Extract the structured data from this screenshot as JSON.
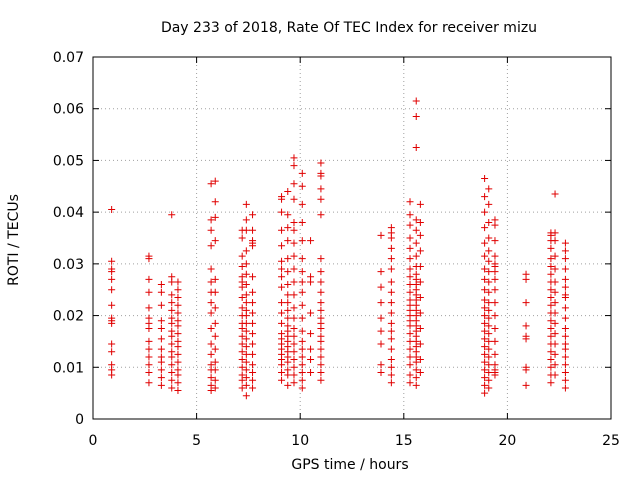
{
  "chart_data": {
    "type": "scatter",
    "title": "Day 233 of 2018, Rate Of TEC Index for receiver mizu",
    "xlabel": "GPS time / hours",
    "ylabel": "ROTI / TECUs",
    "xlim": [
      0,
      25
    ],
    "ylim": [
      0,
      0.07
    ],
    "xticks": [
      0,
      5,
      10,
      15,
      20,
      25
    ],
    "yticks": [
      0,
      0.01,
      0.02,
      0.03,
      0.04,
      0.05,
      0.06,
      0.07
    ],
    "xtick_labels": [
      "0",
      "5",
      "10",
      "15",
      "20",
      "25"
    ],
    "ytick_labels": [
      "0",
      "0.01",
      "0.02",
      "0.03",
      "0.04",
      "0.05",
      "0.06",
      "0.07"
    ],
    "grid": true,
    "marker": "plus",
    "color": "#e00000",
    "clusters": [
      {
        "x": 0.9,
        "y": [
          0.0085,
          0.0095,
          0.0105,
          0.013,
          0.0145,
          0.0185,
          0.019,
          0.0195,
          0.022,
          0.025,
          0.027,
          0.0285,
          0.029,
          0.0305,
          0.0405
        ]
      },
      {
        "x": 2.7,
        "y": [
          0.007,
          0.009,
          0.0105,
          0.012,
          0.0135,
          0.015,
          0.0175,
          0.0185,
          0.0195,
          0.0215,
          0.0245,
          0.027,
          0.031,
          0.0315
        ]
      },
      {
        "x": 3.3,
        "y": [
          0.0065,
          0.008,
          0.0095,
          0.011,
          0.012,
          0.0135,
          0.0155,
          0.0175,
          0.019,
          0.022,
          0.0245,
          0.026
        ]
      },
      {
        "x": 3.8,
        "y": [
          0.006,
          0.0075,
          0.009,
          0.0105,
          0.012,
          0.013,
          0.0145,
          0.016,
          0.017,
          0.0185,
          0.0195,
          0.021,
          0.0225,
          0.024,
          0.0265,
          0.0275,
          0.0395
        ]
      },
      {
        "x": 4.1,
        "y": [
          0.0055,
          0.007,
          0.0085,
          0.0095,
          0.011,
          0.0125,
          0.014,
          0.015,
          0.0165,
          0.018,
          0.019,
          0.0205,
          0.022,
          0.0235,
          0.025,
          0.0265
        ]
      },
      {
        "x": 5.7,
        "y": [
          0.0055,
          0.0065,
          0.008,
          0.0095,
          0.0105,
          0.0125,
          0.0145,
          0.0175,
          0.0205,
          0.0225,
          0.0245,
          0.0265,
          0.029,
          0.0335,
          0.0365,
          0.0385,
          0.0455
        ]
      },
      {
        "x": 5.9,
        "y": [
          0.006,
          0.0075,
          0.0095,
          0.011,
          0.0135,
          0.016,
          0.0185,
          0.0215,
          0.0245,
          0.027,
          0.0345,
          0.039,
          0.042,
          0.046
        ]
      },
      {
        "x": 7.2,
        "y": [
          0.006,
          0.0075,
          0.0085,
          0.01,
          0.0115,
          0.013,
          0.0145,
          0.016,
          0.0175,
          0.0185,
          0.02,
          0.0215,
          0.0235,
          0.0255,
          0.0265,
          0.0275,
          0.0295,
          0.0315,
          0.035,
          0.0365
        ]
      },
      {
        "x": 7.4,
        "y": [
          0.0045,
          0.0065,
          0.008,
          0.0095,
          0.011,
          0.0125,
          0.014,
          0.0155,
          0.017,
          0.0185,
          0.02,
          0.021,
          0.0225,
          0.024,
          0.026,
          0.028,
          0.03,
          0.0325,
          0.0365,
          0.0385,
          0.0415
        ]
      },
      {
        "x": 7.7,
        "y": [
          0.006,
          0.0075,
          0.009,
          0.0105,
          0.0125,
          0.0145,
          0.0165,
          0.0185,
          0.0205,
          0.0225,
          0.0245,
          0.0275,
          0.0335,
          0.034,
          0.0345,
          0.0365,
          0.0395
        ]
      },
      {
        "x": 9.1,
        "y": [
          0.0075,
          0.009,
          0.0105,
          0.0115,
          0.0125,
          0.0135,
          0.0145,
          0.0155,
          0.0165,
          0.0185,
          0.0205,
          0.0225,
          0.0255,
          0.0275,
          0.029,
          0.0305,
          0.0335,
          0.0365,
          0.04,
          0.0425,
          0.043
        ]
      },
      {
        "x": 9.4,
        "y": [
          0.0065,
          0.0085,
          0.0095,
          0.011,
          0.012,
          0.013,
          0.014,
          0.015,
          0.016,
          0.017,
          0.018,
          0.0195,
          0.021,
          0.0225,
          0.024,
          0.026,
          0.0285,
          0.031,
          0.0345,
          0.037,
          0.0395,
          0.044
        ]
      },
      {
        "x": 9.7,
        "y": [
          0.007,
          0.0085,
          0.01,
          0.0115,
          0.013,
          0.0145,
          0.016,
          0.0175,
          0.0195,
          0.0215,
          0.024,
          0.0265,
          0.029,
          0.0315,
          0.034,
          0.0365,
          0.038,
          0.0425,
          0.0455,
          0.049,
          0.0505
        ]
      },
      {
        "x": 10.1,
        "y": [
          0.006,
          0.0075,
          0.009,
          0.0105,
          0.012,
          0.0135,
          0.015,
          0.017,
          0.0195,
          0.022,
          0.0245,
          0.0265,
          0.0285,
          0.031,
          0.0345,
          0.038,
          0.0415,
          0.045,
          0.0475
        ]
      },
      {
        "x": 10.5,
        "y": [
          0.009,
          0.0115,
          0.0135,
          0.0165,
          0.0205,
          0.0265,
          0.0275,
          0.0345
        ]
      },
      {
        "x": 11.0,
        "y": [
          0.0075,
          0.009,
          0.0105,
          0.012,
          0.0135,
          0.015,
          0.016,
          0.0175,
          0.0185,
          0.0195,
          0.021,
          0.0225,
          0.0245,
          0.0265,
          0.0285,
          0.031,
          0.0395,
          0.0425,
          0.0445,
          0.047,
          0.0475,
          0.0495
        ]
      },
      {
        "x": 13.9,
        "y": [
          0.009,
          0.0105,
          0.0145,
          0.017,
          0.0195,
          0.0225,
          0.0255,
          0.0285,
          0.0355
        ]
      },
      {
        "x": 14.4,
        "y": [
          0.007,
          0.0085,
          0.01,
          0.0115,
          0.0135,
          0.0155,
          0.017,
          0.0185,
          0.0205,
          0.0225,
          0.0245,
          0.0265,
          0.029,
          0.031,
          0.033,
          0.035,
          0.036,
          0.037
        ]
      },
      {
        "x": 15.3,
        "y": [
          0.007,
          0.0085,
          0.0105,
          0.012,
          0.0135,
          0.015,
          0.0165,
          0.018,
          0.019,
          0.02,
          0.021,
          0.022,
          0.023,
          0.0245,
          0.026,
          0.0275,
          0.029,
          0.031,
          0.033,
          0.035,
          0.0375,
          0.0395,
          0.042
        ]
      },
      {
        "x": 15.6,
        "y": [
          0.0065,
          0.008,
          0.0095,
          0.011,
          0.012,
          0.013,
          0.014,
          0.015,
          0.016,
          0.017,
          0.018,
          0.019,
          0.02,
          0.021,
          0.022,
          0.023,
          0.024,
          0.025,
          0.026,
          0.027,
          0.028,
          0.0295,
          0.0315,
          0.034,
          0.0365,
          0.0385,
          0.0525,
          0.0585,
          0.0615
        ]
      },
      {
        "x": 15.8,
        "y": [
          0.009,
          0.0115,
          0.0145,
          0.0175,
          0.0205,
          0.0235,
          0.0265,
          0.0295,
          0.0325,
          0.0355,
          0.038,
          0.0415
        ]
      },
      {
        "x": 18.9,
        "y": [
          0.005,
          0.0065,
          0.008,
          0.0095,
          0.011,
          0.0125,
          0.014,
          0.0155,
          0.017,
          0.0185,
          0.02,
          0.0215,
          0.023,
          0.025,
          0.027,
          0.029,
          0.0315,
          0.034,
          0.037,
          0.04,
          0.043,
          0.0465
        ]
      },
      {
        "x": 19.1,
        "y": [
          0.006,
          0.0075,
          0.009,
          0.0105,
          0.012,
          0.0135,
          0.015,
          0.0165,
          0.018,
          0.0195,
          0.021,
          0.0225,
          0.0245,
          0.0265,
          0.0285,
          0.0305,
          0.0325,
          0.035,
          0.038,
          0.0415,
          0.0445
        ]
      },
      {
        "x": 19.4,
        "y": [
          0.0085,
          0.009,
          0.0095,
          0.0105,
          0.0125,
          0.015,
          0.0175,
          0.02,
          0.0225,
          0.025,
          0.027,
          0.0285,
          0.0295,
          0.03,
          0.0315,
          0.0345,
          0.0375,
          0.0385
        ]
      },
      {
        "x": 20.9,
        "y": [
          0.0065,
          0.0095,
          0.01,
          0.0155,
          0.016,
          0.018,
          0.0225,
          0.027,
          0.028
        ]
      },
      {
        "x": 22.1,
        "y": [
          0.007,
          0.0085,
          0.01,
          0.0115,
          0.013,
          0.0145,
          0.016,
          0.0175,
          0.019,
          0.0205,
          0.022,
          0.0235,
          0.025,
          0.0265,
          0.028,
          0.0295,
          0.031,
          0.033,
          0.0345,
          0.0355,
          0.036
        ]
      },
      {
        "x": 22.3,
        "y": [
          0.0085,
          0.0105,
          0.0125,
          0.0145,
          0.0165,
          0.0185,
          0.0205,
          0.0225,
          0.0245,
          0.0265,
          0.029,
          0.0315,
          0.0345,
          0.036,
          0.0435
        ]
      },
      {
        "x": 22.8,
        "y": [
          0.006,
          0.0075,
          0.009,
          0.0105,
          0.012,
          0.0135,
          0.0145,
          0.016,
          0.0175,
          0.0195,
          0.0215,
          0.0235,
          0.024,
          0.0255,
          0.027,
          0.029,
          0.031,
          0.0325,
          0.034
        ]
      }
    ]
  }
}
